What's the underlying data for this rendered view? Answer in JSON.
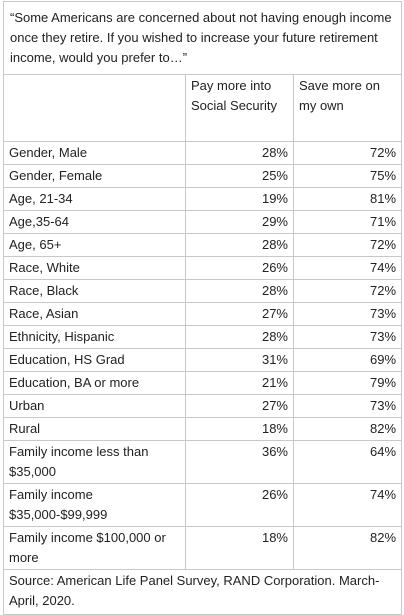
{
  "table": {
    "title": "“Some Americans are concerned about not having enough income once they retire. If you wished to increase your future retirement income, would you prefer to…”",
    "columns": [
      "Pay more into Social Security",
      "Save more on my own"
    ],
    "rows": [
      [
        "Gender, Male",
        "28%",
        "72%"
      ],
      [
        "Gender, Female",
        "25%",
        "75%"
      ],
      [
        "Age, 21-34",
        "19%",
        "81%"
      ],
      [
        "Age,35-64",
        "29%",
        "71%"
      ],
      [
        "Age, 65+",
        "28%",
        "72%"
      ],
      [
        "Race, White",
        "26%",
        "74%"
      ],
      [
        "Race, Black",
        "28%",
        "72%"
      ],
      [
        "Race, Asian",
        "27%",
        "73%"
      ],
      [
        "Ethnicity, Hispanic",
        "28%",
        "73%"
      ],
      [
        "Education, HS Grad",
        "31%",
        "69%"
      ],
      [
        "Education, BA or more",
        "21%",
        "79%"
      ],
      [
        "Urban",
        "27%",
        "73%"
      ],
      [
        "Rural",
        "18%",
        "82%"
      ],
      [
        "Family income less than $35,000",
        "36%",
        "64%"
      ],
      [
        "Family income $35,000-$99,999",
        "26%",
        "74%"
      ],
      [
        "Family income $100,000 or more",
        "18%",
        "82%"
      ]
    ],
    "source": "Source: American Life Panel Survey, RAND Corporation. March-April, 2020."
  }
}
